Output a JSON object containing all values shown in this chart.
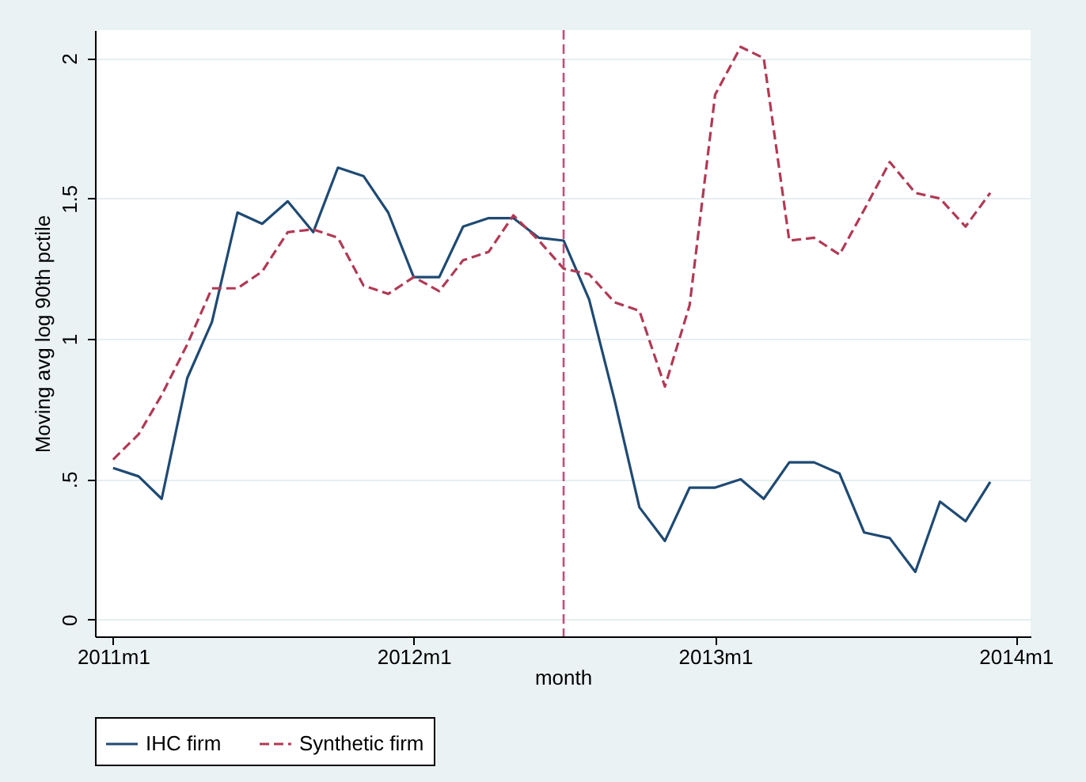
{
  "chart_data": {
    "type": "line",
    "xlabel": "month",
    "ylabel": "Moving avg log 90th pctile",
    "x": [
      "2011-01",
      "2011-02",
      "2011-03",
      "2011-04",
      "2011-05",
      "2011-06",
      "2011-07",
      "2011-08",
      "2011-09",
      "2011-10",
      "2011-11",
      "2011-12",
      "2012-01",
      "2012-02",
      "2012-03",
      "2012-04",
      "2012-05",
      "2012-06",
      "2012-07",
      "2012-08",
      "2012-09",
      "2012-10",
      "2012-11",
      "2012-12",
      "2013-01",
      "2013-02",
      "2013-03",
      "2013-04",
      "2013-05",
      "2013-06",
      "2013-07",
      "2013-08",
      "2013-09",
      "2013-10",
      "2013-11",
      "2013-12"
    ],
    "xlim": [
      "2010-12-10",
      "2014-01-19"
    ],
    "xticks": [
      {
        "value": "2011-01",
        "label": "2011m1"
      },
      {
        "value": "2012-01",
        "label": "2012m1"
      },
      {
        "value": "2013-01",
        "label": "2013m1"
      },
      {
        "value": "2014-01",
        "label": "2014m1"
      }
    ],
    "ylim": [
      -0.06,
      2.1
    ],
    "yticks": [
      0,
      {
        "value": 0.5,
        "label": ".5"
      },
      1,
      1.5,
      2
    ],
    "grid": "y",
    "legend": "bottom",
    "series": [
      {
        "name": "IHC firm",
        "color": "#1f4a73",
        "line_style": "solid",
        "values": [
          0.54,
          0.51,
          0.43,
          0.86,
          1.06,
          1.45,
          1.41,
          1.49,
          1.38,
          1.61,
          1.58,
          1.45,
          1.22,
          1.22,
          1.4,
          1.43,
          1.43,
          1.36,
          1.35,
          1.14,
          0.78,
          0.4,
          0.28,
          0.47,
          0.47,
          0.5,
          0.43,
          0.56,
          0.56,
          0.52,
          0.31,
          0.29,
          0.17,
          0.42,
          0.35,
          0.49
        ]
      },
      {
        "name": "Synthetic firm",
        "color": "#b03a55",
        "line_style": "dashed",
        "values": [
          0.57,
          0.66,
          0.8,
          0.98,
          1.18,
          1.18,
          1.24,
          1.38,
          1.39,
          1.36,
          1.19,
          1.16,
          1.22,
          1.17,
          1.28,
          1.31,
          1.44,
          1.35,
          1.25,
          1.23,
          1.13,
          1.1,
          0.83,
          1.12,
          1.87,
          2.04,
          2.0,
          1.35,
          1.36,
          1.3,
          1.46,
          1.63,
          1.52,
          1.5,
          1.4,
          1.52
        ]
      }
    ],
    "ref_lines": [
      {
        "axis": "x",
        "value": "2012-07",
        "color": "#c0507a",
        "line_style": "dashed"
      }
    ]
  }
}
